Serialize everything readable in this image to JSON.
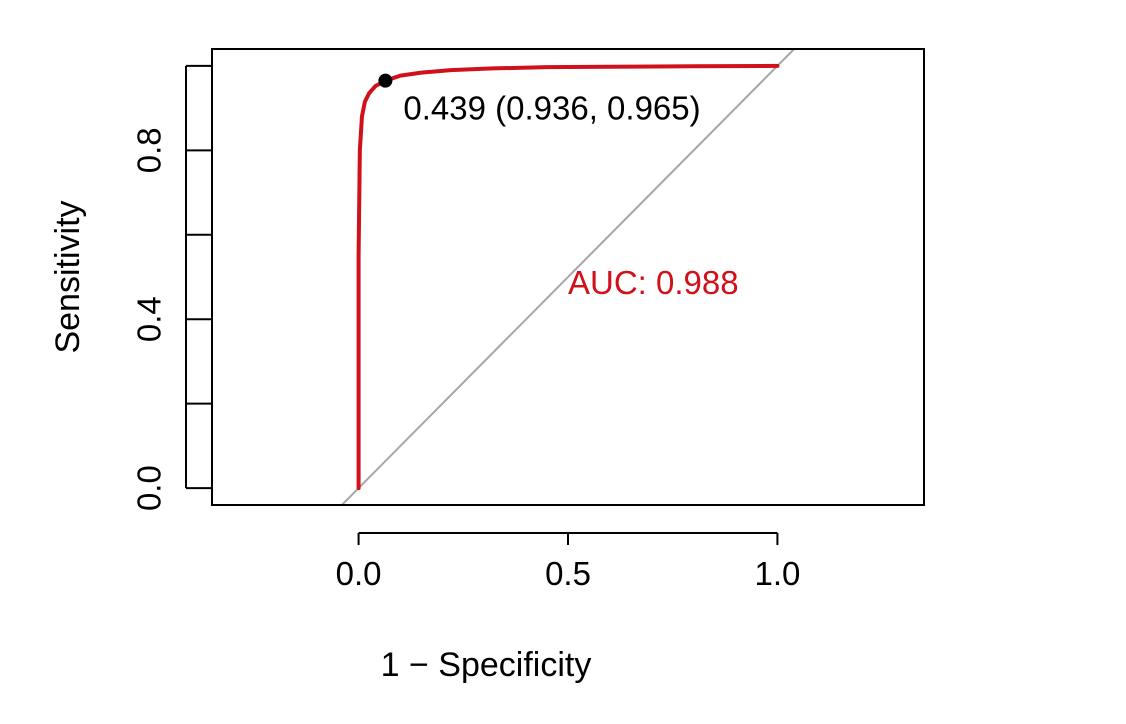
{
  "chart_data": {
    "type": "line",
    "xlabel": "1 − Specificity",
    "ylabel": "Sensitivity",
    "xlim": [
      -0.35,
      1.35
    ],
    "ylim": [
      -0.04,
      1.04
    ],
    "x_ticks": [
      "0.0",
      "0.5",
      "1.0"
    ],
    "x_tick_values": [
      0.0,
      0.5,
      1.0
    ],
    "y_ticks": [
      "0.0",
      "0.4",
      "0.8"
    ],
    "y_tick_values": [
      0.0,
      0.2,
      0.4,
      0.6,
      0.8,
      1.0
    ],
    "y_tick_labeled": [
      true,
      false,
      true,
      false,
      true,
      false
    ],
    "grid": false,
    "series": [
      {
        "color": "#d0101a",
        "x": [
          0.0,
          0.0,
          0.003,
          0.008,
          0.015,
          0.025,
          0.04,
          0.064,
          0.1,
          0.15,
          0.22,
          0.32,
          0.45,
          0.6,
          0.8,
          1.0
        ],
        "y": [
          0.0,
          0.55,
          0.8,
          0.88,
          0.915,
          0.935,
          0.952,
          0.965,
          0.977,
          0.984,
          0.99,
          0.994,
          0.997,
          0.998,
          0.999,
          1.0
        ]
      }
    ],
    "reference_line": {
      "color": "#a6a6a6",
      "x": [
        -0.05,
        1.05
      ],
      "y": [
        -0.05,
        1.05
      ]
    },
    "threshold_point": {
      "x": 0.064,
      "y": 0.965,
      "color": "#000000",
      "label": "0.439 (0.936, 0.965)"
    },
    "auc_annotation": {
      "text": "AUC: 0.988",
      "x": 0.5,
      "y": 0.46,
      "color": "#d0101a"
    }
  }
}
